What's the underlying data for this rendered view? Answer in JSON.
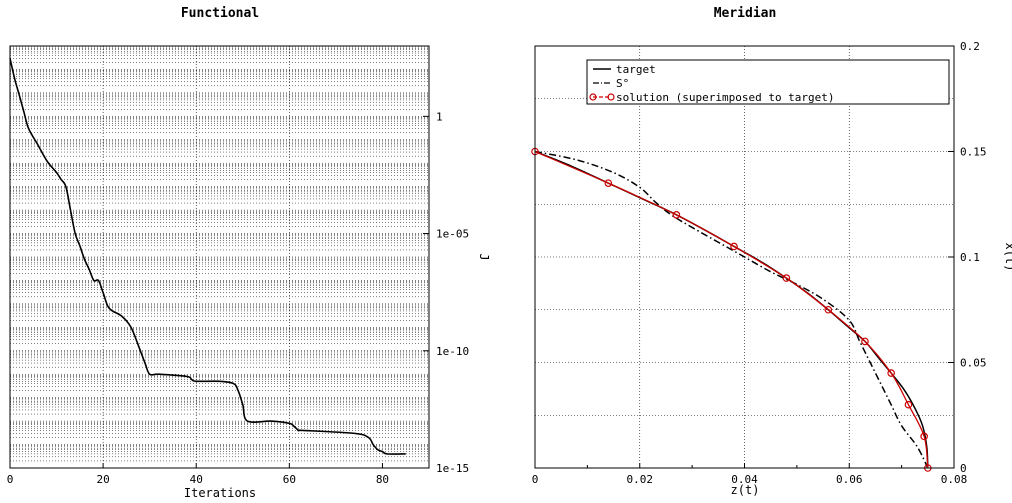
{
  "chart_data": [
    {
      "type": "line",
      "title": "Functional",
      "xlabel": "Iterations",
      "ylabel": "J",
      "y_scale": "log",
      "xlim": [
        0,
        90
      ],
      "ylim": [
        1e-15,
        1000
      ],
      "x_ticks": [
        0,
        20,
        40,
        60,
        80
      ],
      "x_tick_labels": [
        "0",
        "20",
        "40",
        "60",
        "80"
      ],
      "y_ticks": [
        1,
        1e-05,
        1e-10,
        1e-15
      ],
      "y_tick_labels": [
        "1",
        "1e-05",
        "1e-10",
        "1e-15"
      ],
      "y_axis_side": "right",
      "grid": true,
      "series": [
        {
          "name": "",
          "color": "#000000",
          "style": "solid",
          "x": [
            0,
            1,
            2,
            3,
            4,
            6,
            8,
            10,
            11,
            12,
            13,
            14,
            15,
            16,
            17,
            18,
            19,
            20,
            21,
            22,
            24,
            26,
            28,
            29,
            30,
            32,
            38,
            39,
            40,
            45,
            48,
            49,
            50,
            51,
            56,
            60,
            61,
            62,
            63,
            74,
            77,
            78,
            79,
            80,
            81,
            85
          ],
          "y": [
            300,
            40,
            8,
            1.5,
            0.3,
            0.06,
            0.012,
            0.004,
            0.002,
            0.001,
            0.0001,
            1e-05,
            3e-06,
            8e-07,
            3e-07,
            1e-07,
            1e-07,
            3e-08,
            8e-09,
            5e-09,
            3e-09,
            1e-09,
            1e-10,
            3e-11,
            1e-11,
            1e-11,
            8e-12,
            6e-12,
            5e-12,
            5e-12,
            4e-12,
            2e-12,
            5e-13,
            1e-13,
            1e-13,
            8e-14,
            6e-14,
            4e-14,
            4e-14,
            3e-14,
            2e-14,
            1e-14,
            6e-15,
            5e-15,
            4e-15,
            4e-15
          ]
        }
      ]
    },
    {
      "type": "line",
      "title": "Meridian",
      "xlabel": "z(t)",
      "ylabel": "x(t)",
      "xlim": [
        0,
        0.08
      ],
      "ylim": [
        0,
        0.2
      ],
      "x_ticks": [
        0,
        0.02,
        0.04,
        0.06,
        0.08
      ],
      "x_tick_labels": [
        "0",
        "0.02",
        "0.04",
        "0.06",
        "0.08"
      ],
      "y_ticks": [
        0,
        0.05,
        0.1,
        0.15,
        0.2
      ],
      "y_tick_labels": [
        "0",
        "0.05",
        "0.1",
        "0.15",
        "0.2"
      ],
      "y_axis_side": "right",
      "grid": true,
      "legend_position": "top",
      "series": [
        {
          "name": "target",
          "color": "#000000",
          "style": "solid",
          "x": [
            0,
            0.007,
            0.014,
            0.021,
            0.027,
            0.033,
            0.038,
            0.043,
            0.048,
            0.052,
            0.056,
            0.0595,
            0.063,
            0.0655,
            0.068,
            0.0705,
            0.0725,
            0.074,
            0.0748,
            0.075
          ],
          "y": [
            0.15,
            0.143,
            0.135,
            0.127,
            0.12,
            0.112,
            0.105,
            0.098,
            0.09,
            0.083,
            0.075,
            0.0675,
            0.06,
            0.0525,
            0.045,
            0.037,
            0.0285,
            0.02,
            0.01,
            0
          ]
        },
        {
          "name": "S°",
          "color": "#000000",
          "style": "dashdot",
          "x": [
            0,
            0.008,
            0.015,
            0.02,
            0.023,
            0.026,
            0.03,
            0.035,
            0.04,
            0.045,
            0.05,
            0.055,
            0.06,
            0.062,
            0.064,
            0.066,
            0.068,
            0.07,
            0.073,
            0.075
          ],
          "y": [
            0.15,
            0.146,
            0.14,
            0.133,
            0.126,
            0.12,
            0.114,
            0.107,
            0.1,
            0.093,
            0.087,
            0.08,
            0.07,
            0.06,
            0.05,
            0.04,
            0.03,
            0.02,
            0.01,
            0
          ]
        },
        {
          "name": "solution (superimposed to target)",
          "color": "#cc0000",
          "style": "solid",
          "marker": "circle",
          "x": [
            0,
            0.014,
            0.027,
            0.038,
            0.048,
            0.056,
            0.063,
            0.068,
            0.0713,
            0.0743,
            0.075
          ],
          "y": [
            0.15,
            0.135,
            0.12,
            0.105,
            0.09,
            0.075,
            0.06,
            0.045,
            0.03,
            0.015,
            0
          ]
        }
      ]
    }
  ]
}
